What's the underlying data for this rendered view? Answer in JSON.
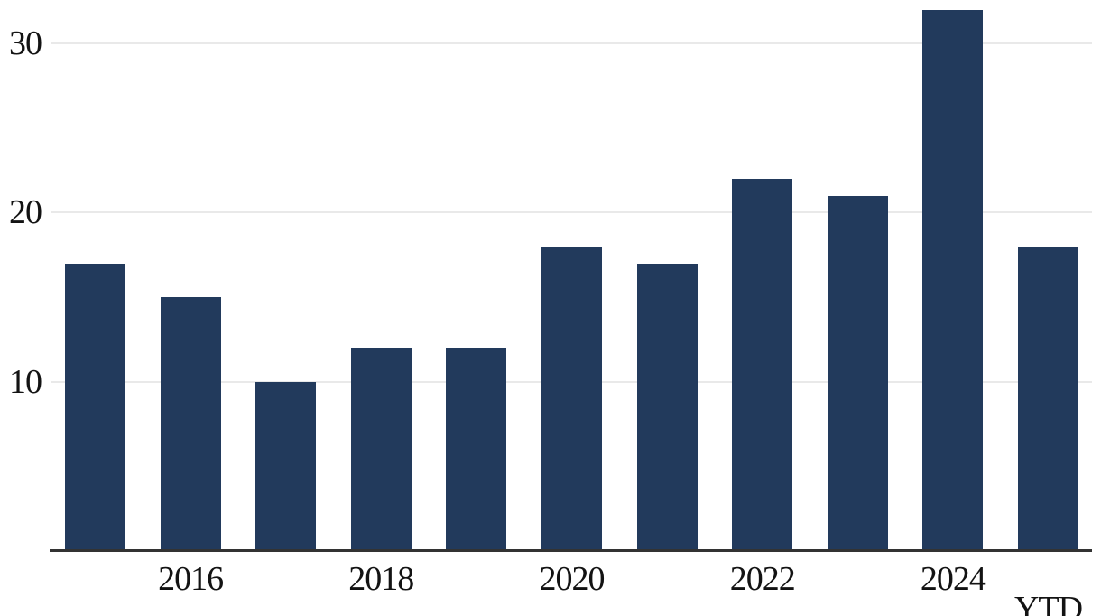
{
  "chart_data": {
    "type": "bar",
    "title": "",
    "bar_count": 11,
    "values": [
      17,
      15,
      10,
      12,
      12,
      18,
      17,
      22,
      21,
      32,
      18
    ],
    "x_ticks": [
      {
        "bar_index": 1,
        "label": "2016",
        "offset_down": false
      },
      {
        "bar_index": 3,
        "label": "2018",
        "offset_down": false
      },
      {
        "bar_index": 5,
        "label": "2020",
        "offset_down": false
      },
      {
        "bar_index": 7,
        "label": "2022",
        "offset_down": false
      },
      {
        "bar_index": 9,
        "label": "2024",
        "offset_down": false
      },
      {
        "bar_index": 10,
        "label": "YTD",
        "offset_down": true
      }
    ],
    "y_ticks": [
      {
        "value": 10,
        "label": "10"
      },
      {
        "value": 20,
        "label": "20"
      },
      {
        "value": 30,
        "label": "30"
      }
    ],
    "ylim": [
      0,
      32.5
    ],
    "grid": true,
    "legend": "none",
    "bar_color": "#223a5c",
    "gridline_color": "#e9e9e9",
    "axis_line_color": "#333333",
    "text_color": "#131313",
    "background_color": "#ffffff"
  }
}
